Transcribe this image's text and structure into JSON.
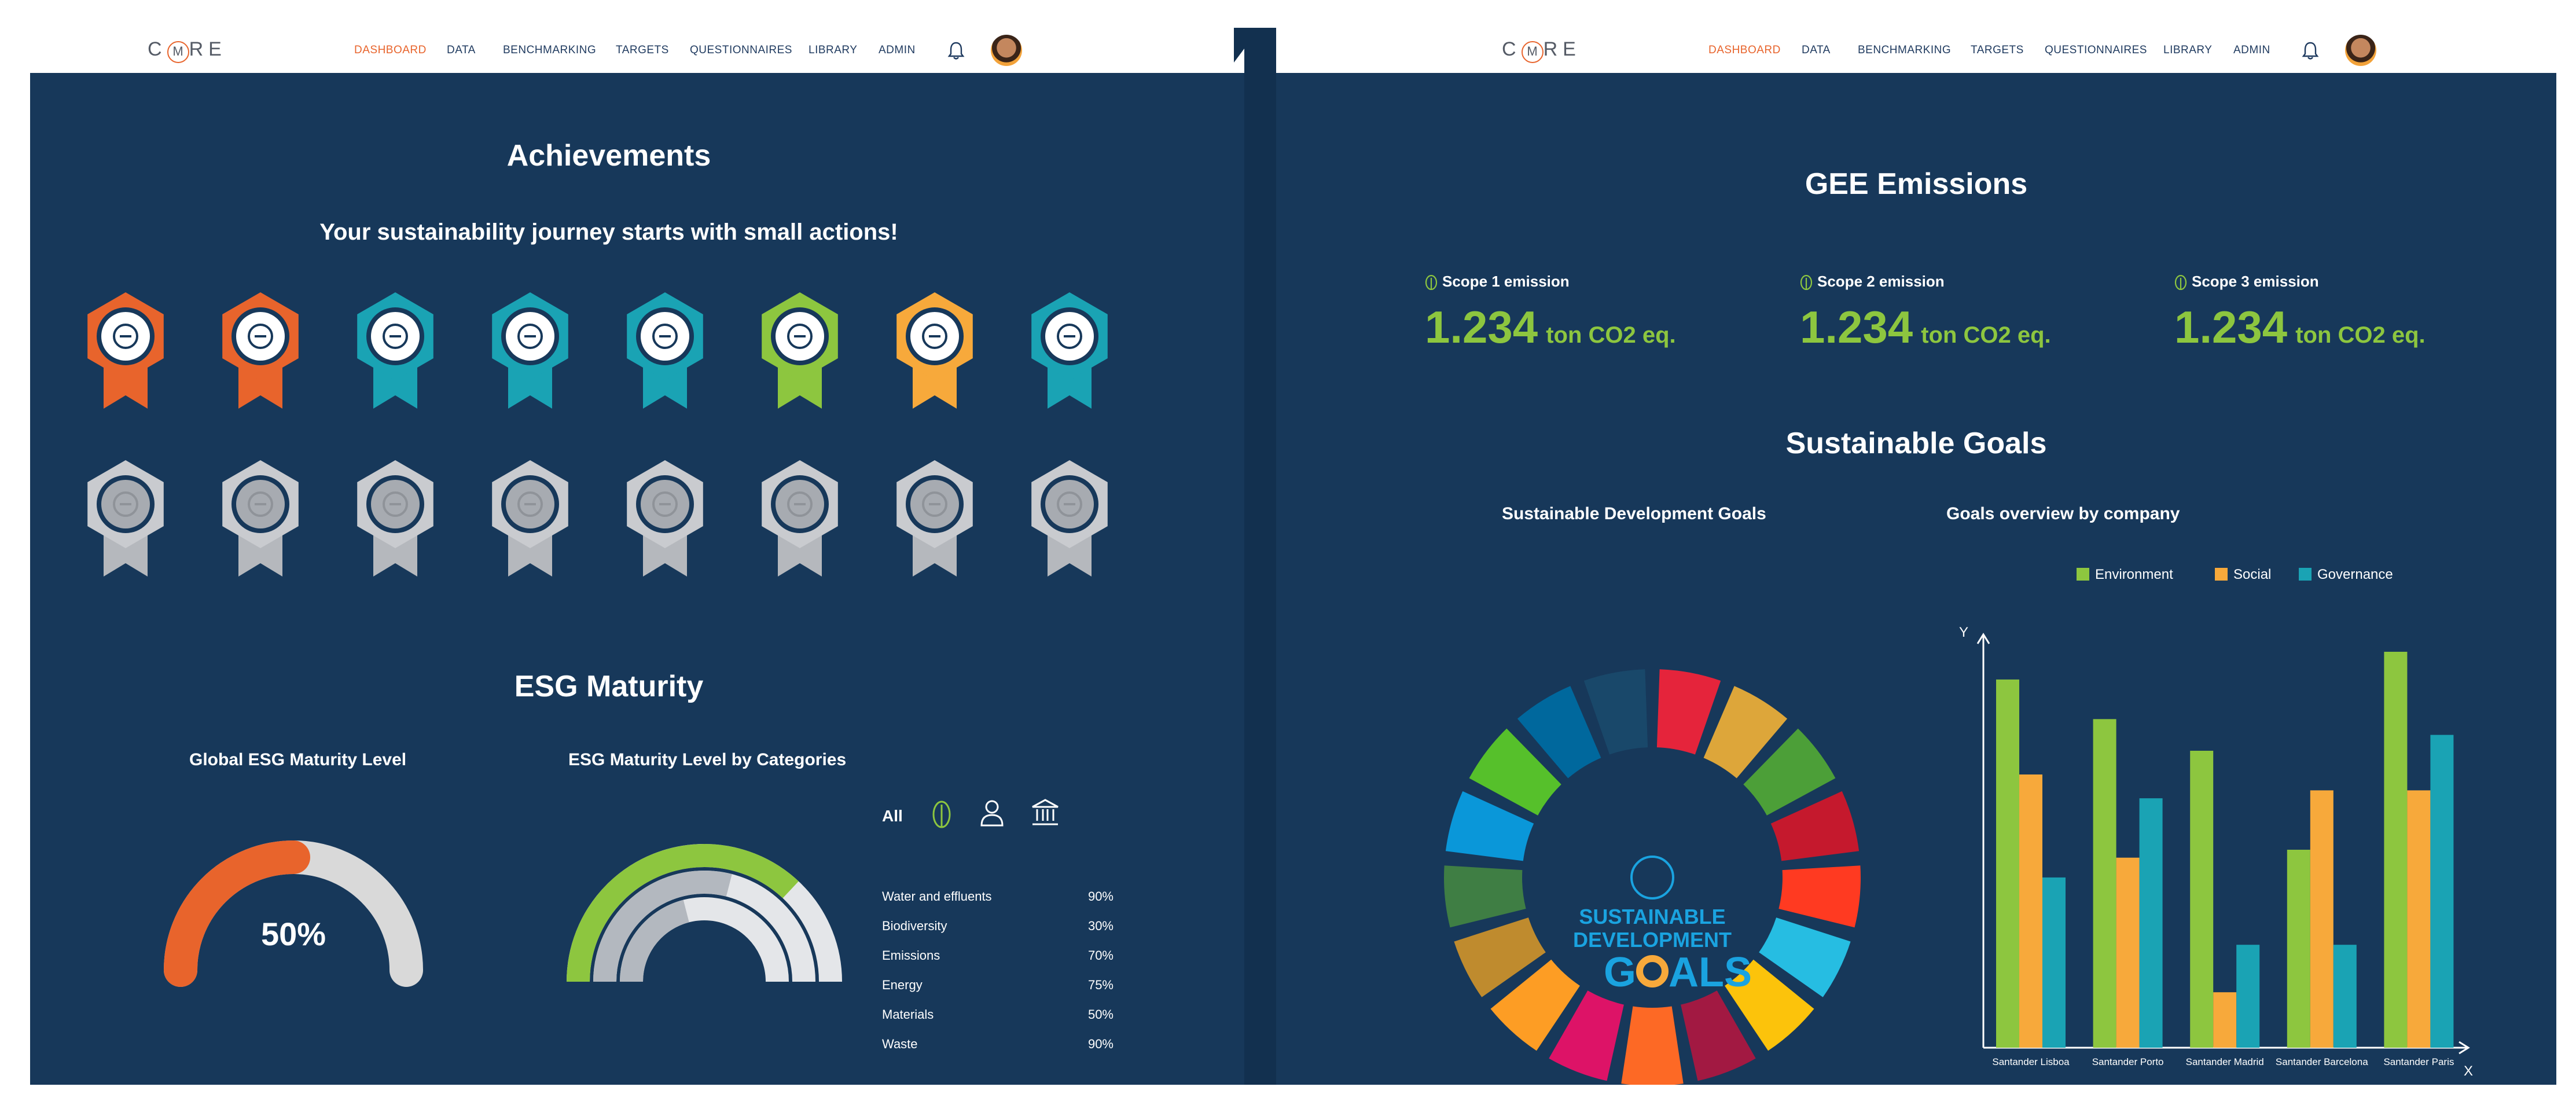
{
  "nav": {
    "logo": {
      "pre": "C",
      "mid": "M",
      "post": "RE"
    },
    "items": [
      "DASHBOARD",
      "DATA",
      "BENCHMARKING",
      "TARGETS",
      "QUESTIONNAIRES",
      "LIBRARY",
      "ADMIN"
    ],
    "items_right": [
      "DASHBOARD",
      "DATA",
      "BENCHMARKING",
      "TARGETS",
      "QUESTIONNAIRES",
      "LIBRARY",
      "ADMIN"
    ],
    "active": "DASHBOARD"
  },
  "achievements": {
    "title": "Achievements",
    "subtitle": "Your sustainability journey starts with small actions!",
    "unlocked": [
      {
        "icon": "key-icon",
        "color": "#e8642c"
      },
      {
        "icon": "checkbox-icon",
        "color": "#e8642c"
      },
      {
        "icon": "megaphone-icon",
        "color": "#1aa3b4"
      },
      {
        "icon": "book-icon",
        "color": "#1aa3b4"
      },
      {
        "icon": "document-edit-icon",
        "color": "#1aa3b4"
      },
      {
        "icon": "head-gear-icon",
        "color": "#8dc63f"
      },
      {
        "icon": "hands-people-icon",
        "color": "#f7a93b"
      },
      {
        "icon": "person-target-icon",
        "color": "#1aa3b4"
      }
    ],
    "locked": [
      {
        "icon": "gender-icon"
      },
      {
        "icon": "box-icon"
      },
      {
        "icon": "magnifier-icon"
      },
      {
        "icon": "ring-icon"
      },
      {
        "icon": "footprints-icon"
      },
      {
        "icon": "leaves-icon"
      },
      {
        "icon": "pencil-icon"
      },
      {
        "icon": "id-card-icon"
      }
    ]
  },
  "esg": {
    "title": "ESG Maturity",
    "global_label": "Global ESG Maturity Level",
    "global_value": "50%",
    "global_fraction": 0.5,
    "categories_label": "ESG Maturity Level by Categories",
    "filter_all": "All",
    "rings": [
      {
        "name": "Environment",
        "fraction": 0.74,
        "color": "#8dc63f"
      },
      {
        "name": "Social",
        "fraction": 0.58,
        "color": "#b3b8bf"
      },
      {
        "name": "Governance",
        "fraction": 0.42,
        "color": "#b3b8bf"
      }
    ],
    "categories": [
      {
        "name": "Water and effluents",
        "value": "90%"
      },
      {
        "name": "Biodiversity",
        "value": "30%"
      },
      {
        "name": "Emissions",
        "value": "70%"
      },
      {
        "name": "Energy",
        "value": "75%"
      },
      {
        "name": "Materials",
        "value": "50%"
      },
      {
        "name": "Waste",
        "value": "90%"
      }
    ]
  },
  "gee": {
    "title": "GEE Emissions",
    "scopes": [
      {
        "label": "Scope 1 emission",
        "value": "1.234",
        "unit": "ton CO2 eq."
      },
      {
        "label": "Scope 2 emission",
        "value": "1.234",
        "unit": "ton CO2 eq."
      },
      {
        "label": "Scope 3 emission",
        "value": "1.234",
        "unit": "ton CO2 eq."
      }
    ]
  },
  "goals": {
    "title": "Sustainable Goals",
    "sdg_label": "Sustainable Development Goals",
    "sdg_center": [
      "SUSTAINABLE",
      "DEVELOPMENT",
      "G",
      "ALS"
    ],
    "sdg_colors": [
      "#e5243b",
      "#dda63a",
      "#4c9f38",
      "#c5192d",
      "#ff3a21",
      "#26bde2",
      "#fcc30b",
      "#a21942",
      "#fd6925",
      "#dd1367",
      "#fd9d24",
      "#bf8b2e",
      "#3f7e44",
      "#0a97d9",
      "#56c02b",
      "#00689d",
      "#19486a"
    ],
    "overview_label": "Goals overview by company",
    "chart_data": {
      "type": "bar",
      "categories": [
        "Santander Lisboa",
        "Santander Porto",
        "Santander Madrid",
        "Santander Barcelona",
        "Santander Paris"
      ],
      "series": [
        {
          "name": "Environment",
          "color": "#8dc63f",
          "values": [
            93,
            83,
            75,
            50,
            100
          ]
        },
        {
          "name": "Social",
          "color": "#f7a93b",
          "values": [
            69,
            48,
            14,
            65,
            65
          ]
        },
        {
          "name": "Governance",
          "color": "#1aa3b4",
          "values": [
            43,
            63,
            26,
            26,
            79
          ]
        }
      ],
      "xlabel": "X",
      "ylabel": "Y",
      "ylim": [
        0,
        100
      ],
      "legend": "top",
      "grid": false
    }
  }
}
